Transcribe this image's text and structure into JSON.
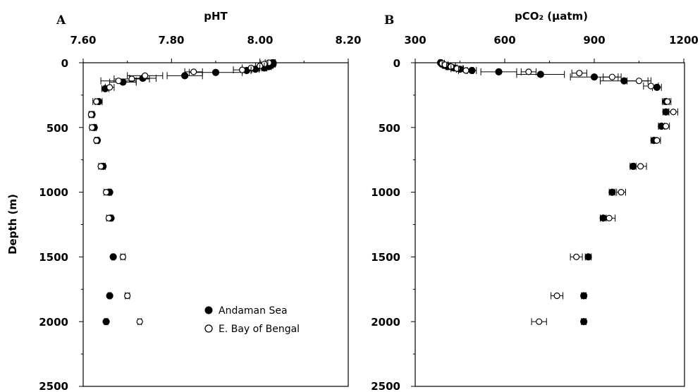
{
  "shared": {
    "ylabel": "Depth (m)"
  },
  "legend": {
    "items": [
      {
        "label": "Andaman Sea",
        "marker": "filled"
      },
      {
        "label": "E. Bay of Bengal",
        "marker": "open"
      }
    ]
  },
  "chart_data": [
    {
      "type": "scatter",
      "panel": "A",
      "title": "pHT",
      "xlabel": "pHT",
      "ylabel": "Depth (m)",
      "xlim": [
        7.6,
        8.2
      ],
      "ylim": [
        0,
        2500
      ],
      "x_ticks": [
        "7.60",
        "7.80",
        "8.00",
        "8.20"
      ],
      "y_ticks": [
        "0",
        "500",
        "1000",
        "1500",
        "2000",
        "2500"
      ],
      "y_inverted": true,
      "axis_position": "x-axis on top",
      "legend_position": "bottom-right",
      "series": [
        {
          "name": "Andaman Sea",
          "marker": "filled-circle",
          "points": [
            {
              "x": 8.03,
              "y": 0,
              "err": 0.005
            },
            {
              "x": 8.03,
              "y": 10,
              "err": 0.005
            },
            {
              "x": 8.025,
              "y": 20,
              "err": 0.005
            },
            {
              "x": 8.02,
              "y": 30,
              "err": 0.006
            },
            {
              "x": 8.01,
              "y": 40,
              "err": 0.006
            },
            {
              "x": 7.99,
              "y": 50,
              "err": 0.008
            },
            {
              "x": 7.97,
              "y": 60,
              "err": 0.01
            },
            {
              "x": 7.9,
              "y": 75,
              "err": 0.06
            },
            {
              "x": 7.83,
              "y": 100,
              "err": 0.04
            },
            {
              "x": 7.735,
              "y": 120,
              "err": 0.03
            },
            {
              "x": 7.69,
              "y": 150,
              "err": 0.03
            },
            {
              "x": 7.65,
              "y": 200,
              "err": 0.008
            },
            {
              "x": 7.635,
              "y": 300,
              "err": 0.008
            },
            {
              "x": 7.62,
              "y": 400,
              "err": 0.005
            },
            {
              "x": 7.625,
              "y": 500,
              "err": 0.005
            },
            {
              "x": 7.632,
              "y": 600,
              "err": 0.004
            },
            {
              "x": 7.645,
              "y": 800,
              "err": 0.005
            },
            {
              "x": 7.66,
              "y": 1000,
              "err": 0.004
            },
            {
              "x": 7.663,
              "y": 1200,
              "err": 0.004
            },
            {
              "x": 7.668,
              "y": 1500,
              "err": 0.003
            },
            {
              "x": 7.66,
              "y": 1800,
              "err": 0.003
            },
            {
              "x": 7.652,
              "y": 2000,
              "err": 0.004
            }
          ]
        },
        {
          "name": "E. Bay of Bengal",
          "marker": "open-circle",
          "points": [
            {
              "x": 8.02,
              "y": 0,
              "err": 0.008
            },
            {
              "x": 8.01,
              "y": 10,
              "err": 0.008
            },
            {
              "x": 8.0,
              "y": 25,
              "err": 0.01
            },
            {
              "x": 7.98,
              "y": 40,
              "err": 0.02
            },
            {
              "x": 7.96,
              "y": 55,
              "err": 0.02
            },
            {
              "x": 7.85,
              "y": 70,
              "err": 0.02
            },
            {
              "x": 7.74,
              "y": 100,
              "err": 0.04
            },
            {
              "x": 7.71,
              "y": 125,
              "err": 0.04
            },
            {
              "x": 7.68,
              "y": 140,
              "err": 0.04
            },
            {
              "x": 7.66,
              "y": 190,
              "err": 0.01
            },
            {
              "x": 7.63,
              "y": 300,
              "err": 0.008
            },
            {
              "x": 7.618,
              "y": 400,
              "err": 0.005
            },
            {
              "x": 7.62,
              "y": 500,
              "err": 0.005
            },
            {
              "x": 7.63,
              "y": 600,
              "err": 0.004
            },
            {
              "x": 7.64,
              "y": 800,
              "err": 0.005
            },
            {
              "x": 7.652,
              "y": 1000,
              "err": 0.005
            },
            {
              "x": 7.658,
              "y": 1200,
              "err": 0.005
            },
            {
              "x": 7.69,
              "y": 1500,
              "err": 0.005
            },
            {
              "x": 7.7,
              "y": 1800,
              "err": 0.005
            },
            {
              "x": 7.728,
              "y": 2000,
              "err": 0.004
            }
          ]
        }
      ]
    },
    {
      "type": "scatter",
      "panel": "B",
      "title": "pCO₂ (µatm)",
      "xlabel": "pCO₂ (µatm)",
      "ylabel": "Depth (m)",
      "xlim": [
        300,
        1200
      ],
      "ylim": [
        0,
        2500
      ],
      "x_ticks": [
        "300",
        "600",
        "900",
        "1200"
      ],
      "y_ticks": [
        "0",
        "500",
        "1000",
        "1500",
        "2000",
        "2500"
      ],
      "y_inverted": true,
      "axis_position": "x-axis on top",
      "series": [
        {
          "name": "Andaman Sea",
          "marker": "filled-circle",
          "points": [
            {
              "x": 385,
              "y": 0,
              "err": 5
            },
            {
              "x": 390,
              "y": 10,
              "err": 5
            },
            {
              "x": 398,
              "y": 20,
              "err": 6
            },
            {
              "x": 410,
              "y": 30,
              "err": 8
            },
            {
              "x": 430,
              "y": 40,
              "err": 10
            },
            {
              "x": 450,
              "y": 50,
              "err": 12
            },
            {
              "x": 490,
              "y": 60,
              "err": 15
            },
            {
              "x": 580,
              "y": 70,
              "err": 60
            },
            {
              "x": 720,
              "y": 90,
              "err": 80
            },
            {
              "x": 900,
              "y": 110,
              "err": 80
            },
            {
              "x": 1000,
              "y": 140,
              "err": 80
            },
            {
              "x": 1110,
              "y": 190,
              "err": 15
            },
            {
              "x": 1140,
              "y": 300,
              "err": 12
            },
            {
              "x": 1140,
              "y": 380,
              "err": 10
            },
            {
              "x": 1125,
              "y": 490,
              "err": 10
            },
            {
              "x": 1100,
              "y": 600,
              "err": 10
            },
            {
              "x": 1030,
              "y": 800,
              "err": 10
            },
            {
              "x": 960,
              "y": 1000,
              "err": 10
            },
            {
              "x": 930,
              "y": 1200,
              "err": 10
            },
            {
              "x": 880,
              "y": 1500,
              "err": 10
            },
            {
              "x": 865,
              "y": 1800,
              "err": 8
            },
            {
              "x": 865,
              "y": 2000,
              "err": 8
            }
          ]
        },
        {
          "name": "E. Bay of Bengal",
          "marker": "open-circle",
          "points": [
            {
              "x": 390,
              "y": 5,
              "err": 8
            },
            {
              "x": 400,
              "y": 15,
              "err": 10
            },
            {
              "x": 420,
              "y": 30,
              "err": 15
            },
            {
              "x": 440,
              "y": 45,
              "err": 20
            },
            {
              "x": 470,
              "y": 60,
              "err": 25
            },
            {
              "x": 680,
              "y": 70,
              "err": 25
            },
            {
              "x": 850,
              "y": 80,
              "err": 25
            },
            {
              "x": 960,
              "y": 110,
              "err": 30
            },
            {
              "x": 1050,
              "y": 140,
              "err": 40
            },
            {
              "x": 1090,
              "y": 180,
              "err": 25
            },
            {
              "x": 1145,
              "y": 300,
              "err": 12
            },
            {
              "x": 1165,
              "y": 380,
              "err": 15
            },
            {
              "x": 1140,
              "y": 490,
              "err": 12
            },
            {
              "x": 1110,
              "y": 600,
              "err": 12
            },
            {
              "x": 1055,
              "y": 800,
              "err": 20
            },
            {
              "x": 990,
              "y": 1000,
              "err": 15
            },
            {
              "x": 950,
              "y": 1200,
              "err": 20
            },
            {
              "x": 840,
              "y": 1500,
              "err": 20
            },
            {
              "x": 775,
              "y": 1800,
              "err": 20
            },
            {
              "x": 715,
              "y": 2000,
              "err": 25
            }
          ]
        }
      ]
    }
  ]
}
